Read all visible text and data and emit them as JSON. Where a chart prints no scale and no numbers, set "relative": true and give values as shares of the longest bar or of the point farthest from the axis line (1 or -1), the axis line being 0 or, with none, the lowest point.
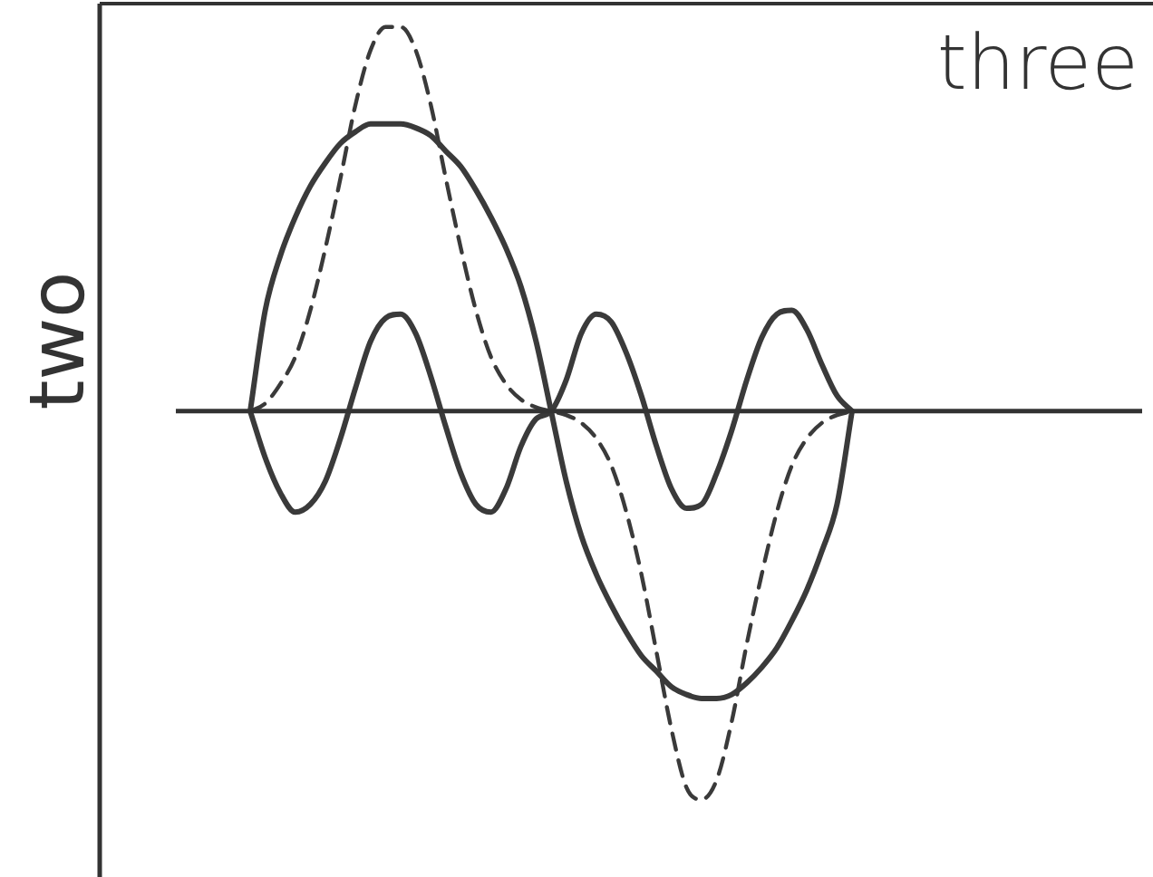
{
  "chart_data": {
    "type": "line",
    "title": "three",
    "ylabel": "two",
    "relative": true,
    "legend": false,
    "marker": "none",
    "categories": [
      null,
      null,
      null,
      null,
      null,
      null,
      null,
      null,
      null,
      null,
      null,
      null,
      null,
      null,
      null,
      null,
      null,
      null,
      null,
      null,
      null,
      null,
      null,
      null,
      null,
      null,
      null,
      null,
      null,
      null,
      null,
      null,
      null,
      null,
      null,
      null,
      null,
      null,
      null,
      null,
      null,
      null,
      null,
      null,
      null,
      null,
      null,
      null,
      null,
      null,
      null,
      null,
      null,
      null,
      null,
      null,
      null,
      null,
      null,
      null,
      null,
      null,
      null,
      null,
      null,
      null,
      null,
      null,
      null,
      null,
      null
    ],
    "series": [
      {
        "color": "#3a3a3a",
        "line_style": "solid",
        "values": [
          null,
          null,
          null,
          null,
          null,
          null,
          null,
          null,
          null,
          null,
          0,
          0.26,
          0.4,
          0.5,
          0.58,
          0.64,
          0.69,
          0.72,
          0.74,
          0.74,
          0.74,
          0.73,
          0.71,
          0.67,
          0.63,
          0.57,
          0.5,
          0.42,
          0.32,
          0.18,
          0,
          -0.18,
          -0.32,
          -0.42,
          -0.5,
          -0.57,
          -0.63,
          -0.67,
          -0.71,
          -0.73,
          -0.74,
          -0.74,
          -0.73,
          -0.7,
          -0.66,
          -0.61,
          -0.54,
          -0.46,
          -0.36,
          -0.24,
          0,
          null,
          null,
          null,
          null,
          null,
          null,
          null,
          null,
          null,
          null,
          null,
          null,
          null,
          null,
          null,
          null,
          null,
          null,
          null,
          null
        ]
      },
      {
        "color": "#3a3a3a",
        "line_style": "dashed",
        "values": [
          null,
          null,
          null,
          null,
          null,
          null,
          null,
          null,
          null,
          null,
          0,
          0.02,
          0.07,
          0.14,
          0.26,
          0.42,
          0.6,
          0.79,
          0.93,
          0.99,
          0.99,
          0.93,
          0.79,
          0.6,
          0.42,
          0.26,
          0.14,
          0.07,
          0.03,
          0.01,
          0,
          -0.01,
          -0.03,
          -0.07,
          -0.14,
          -0.26,
          -0.42,
          -0.62,
          -0.82,
          -0.97,
          -1,
          -0.95,
          -0.8,
          -0.6,
          -0.42,
          -0.26,
          -0.14,
          -0.07,
          -0.03,
          -0.01,
          0,
          null,
          null,
          null,
          null,
          null,
          null,
          null,
          null,
          null,
          null,
          null,
          null,
          null,
          null,
          null,
          null,
          null,
          null,
          null,
          null
        ]
      },
      {
        "color": "#3a3a3a",
        "line_style": "solid",
        "values": [
          null,
          null,
          null,
          null,
          null,
          null,
          null,
          null,
          null,
          null,
          0,
          -0.12,
          -0.21,
          -0.26,
          -0.24,
          -0.18,
          -0.07,
          0.06,
          0.18,
          0.24,
          0.25,
          0.2,
          0.09,
          -0.04,
          -0.16,
          -0.24,
          -0.26,
          -0.2,
          -0.09,
          -0.02,
          0,
          0.08,
          0.2,
          0.25,
          0.23,
          0.15,
          0.04,
          -0.09,
          -0.2,
          -0.25,
          -0.24,
          -0.16,
          -0.05,
          0.08,
          0.19,
          0.25,
          0.26,
          0.21,
          0.12,
          0.04,
          0,
          null,
          null,
          null,
          null,
          null,
          null,
          null,
          null,
          null,
          null,
          null,
          null,
          null,
          null,
          null,
          null,
          null,
          null,
          null,
          null
        ]
      }
    ]
  }
}
